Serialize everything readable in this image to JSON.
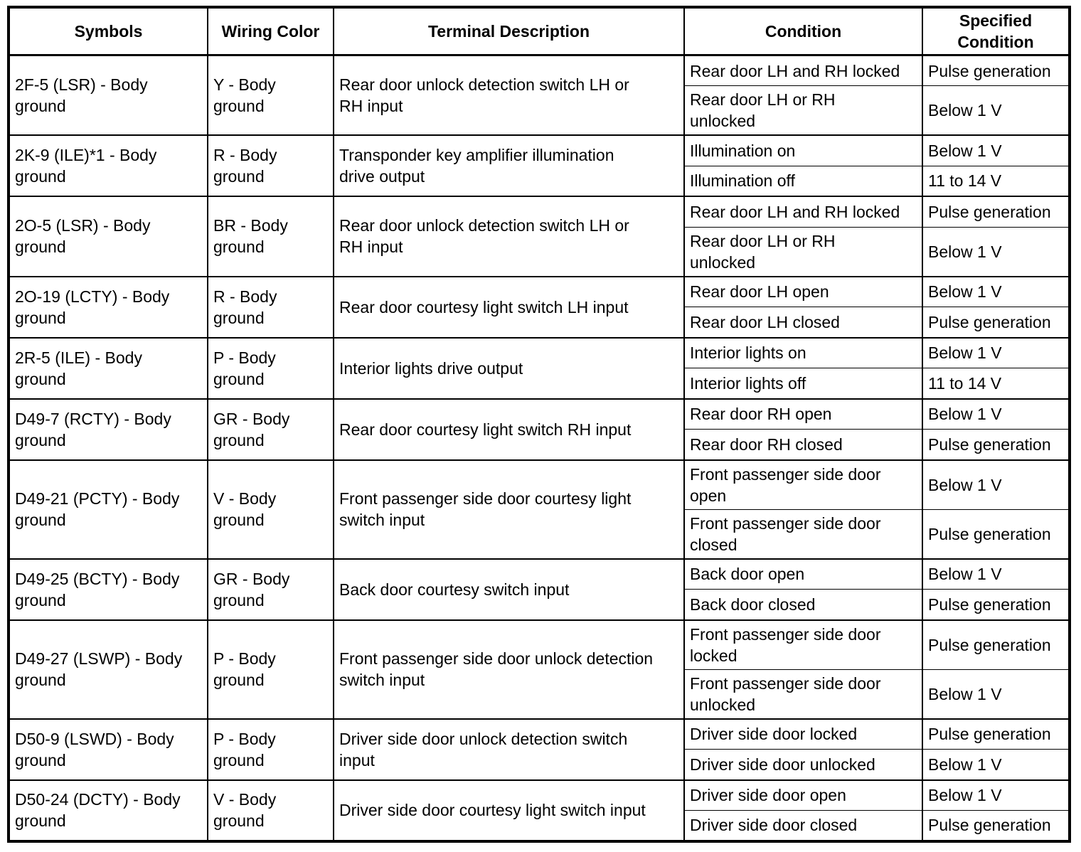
{
  "colors": {
    "border": "#000000",
    "background": "#ffffff",
    "text": "#000000"
  },
  "table": {
    "headers": [
      "Symbols",
      "Wiring Color",
      "Terminal Description",
      "Condition",
      "Specified\nCondition"
    ],
    "rows": [
      {
        "symbol": "2F-5 (LSR) - Body\nground",
        "wiring_color": "Y - Body\nground",
        "terminal_description": "Rear door unlock detection switch LH or\nRH input",
        "conditions": [
          {
            "condition": "Rear door LH and RH locked",
            "specified": "Pulse generation"
          },
          {
            "condition": "Rear door LH or RH\nunlocked",
            "specified": "Below 1 V"
          }
        ]
      },
      {
        "symbol": "2K-9 (ILE)*1 - Body\nground",
        "wiring_color": "R - Body\nground",
        "terminal_description": "Transponder key amplifier illumination\ndrive output",
        "conditions": [
          {
            "condition": "Illumination on",
            "specified": "Below 1 V"
          },
          {
            "condition": "Illumination off",
            "specified": "11 to 14 V"
          }
        ]
      },
      {
        "symbol": "2O-5 (LSR) - Body\nground",
        "wiring_color": "BR - Body\nground",
        "terminal_description": "Rear door unlock detection switch LH or\nRH input",
        "conditions": [
          {
            "condition": "Rear door LH and RH locked",
            "specified": "Pulse generation"
          },
          {
            "condition": "Rear door LH or RH\nunlocked",
            "specified": "Below 1 V"
          }
        ]
      },
      {
        "symbol": "2O-19 (LCTY) - Body\nground",
        "wiring_color": "R - Body\nground",
        "terminal_description": "Rear door courtesy light switch LH input",
        "conditions": [
          {
            "condition": "Rear door LH open",
            "specified": "Below 1 V"
          },
          {
            "condition": "Rear door LH closed",
            "specified": "Pulse generation"
          }
        ]
      },
      {
        "symbol": "2R-5 (ILE) - Body\nground",
        "wiring_color": "P - Body\nground",
        "terminal_description": "Interior lights drive output",
        "conditions": [
          {
            "condition": "Interior lights on",
            "specified": "Below 1 V"
          },
          {
            "condition": "Interior lights off",
            "specified": "11 to 14 V"
          }
        ]
      },
      {
        "symbol": "D49-7 (RCTY) - Body\nground",
        "wiring_color": "GR - Body\nground",
        "terminal_description": "Rear door courtesy light switch RH input",
        "conditions": [
          {
            "condition": "Rear door RH open",
            "specified": "Below 1 V"
          },
          {
            "condition": "Rear door RH closed",
            "specified": "Pulse generation"
          }
        ]
      },
      {
        "symbol": "D49-21 (PCTY) - Body\nground",
        "wiring_color": "V - Body\nground",
        "terminal_description": "Front passenger side door courtesy light\nswitch input",
        "conditions": [
          {
            "condition": "Front passenger side door\nopen",
            "specified": "Below 1 V"
          },
          {
            "condition": "Front passenger side door\nclosed",
            "specified": "Pulse generation"
          }
        ]
      },
      {
        "symbol": "D49-25 (BCTY) - Body\nground",
        "wiring_color": "GR - Body\nground",
        "terminal_description": "Back door courtesy switch input",
        "conditions": [
          {
            "condition": "Back door open",
            "specified": "Below 1 V"
          },
          {
            "condition": "Back door closed",
            "specified": "Pulse generation"
          }
        ]
      },
      {
        "symbol": "D49-27 (LSWP) - Body\nground",
        "wiring_color": "P - Body\nground",
        "terminal_description": "Front passenger side door unlock detection\nswitch input",
        "conditions": [
          {
            "condition": "Front passenger side door\nlocked",
            "specified": "Pulse generation"
          },
          {
            "condition": "Front passenger side door\nunlocked",
            "specified": "Below 1 V"
          }
        ]
      },
      {
        "symbol": "D50-9 (LSWD) - Body\nground",
        "wiring_color": "P - Body\nground",
        "terminal_description": "Driver side door unlock detection switch\ninput",
        "conditions": [
          {
            "condition": "Driver side door locked",
            "specified": "Pulse generation"
          },
          {
            "condition": "Driver side door unlocked",
            "specified": "Below 1 V"
          }
        ]
      },
      {
        "symbol": "D50-24 (DCTY) - Body\nground",
        "wiring_color": "V - Body\nground",
        "terminal_description": "Driver side door courtesy light switch input",
        "conditions": [
          {
            "condition": "Driver side door open",
            "specified": "Below 1 V"
          },
          {
            "condition": "Driver side door closed",
            "specified": "Pulse generation"
          }
        ]
      }
    ]
  }
}
